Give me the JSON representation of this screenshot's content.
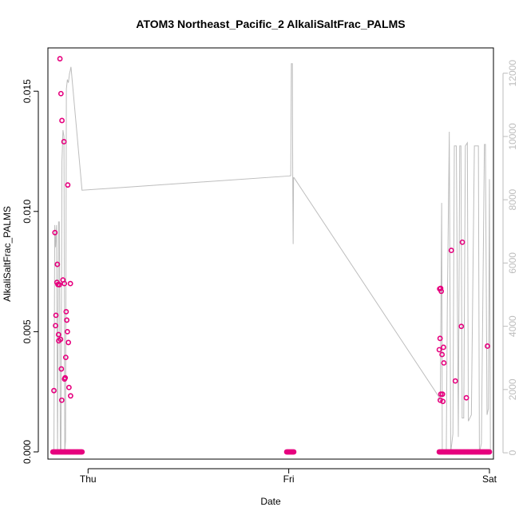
{
  "chart_data": {
    "type": "scatter",
    "title": "ATOM3 Northeast_Pacific_2 AlkaliSaltFrac_PALMS",
    "xlabel": "Date",
    "ylabel": "AlkaliSaltFrac_PALMS",
    "x_unit": "days since Thu 00:00",
    "xlim": [
      -0.2,
      2.02
    ],
    "ylim": [
      -0.0003,
      0.0168
    ],
    "y2lim": [
      -200,
      12800
    ],
    "x_ticks": [
      {
        "value": 0,
        "label": "Thu"
      },
      {
        "value": 1,
        "label": "Fri"
      },
      {
        "value": 2,
        "label": "Sat"
      }
    ],
    "y_ticks": [
      {
        "value": 0.0,
        "label": "0.000"
      },
      {
        "value": 0.005,
        "label": "0.005"
      },
      {
        "value": 0.01,
        "label": "0.010"
      },
      {
        "value": 0.015,
        "label": "0.015"
      }
    ],
    "y2_ticks": [
      {
        "value": 0,
        "label": "0"
      },
      {
        "value": 2000,
        "label": "2000"
      },
      {
        "value": 4000,
        "label": "4000"
      },
      {
        "value": 6000,
        "label": "6000"
      },
      {
        "value": 8000,
        "label": "8000"
      },
      {
        "value": 10000,
        "label": "10000"
      },
      {
        "value": 12000,
        "label": "12000"
      }
    ],
    "grid": false,
    "series": [
      {
        "type": "scatter",
        "axis": "left",
        "color": "#e6007e",
        "points": [
          [
            -0.17,
            0.00255
          ],
          [
            -0.165,
            0.00912
          ],
          [
            -0.162,
            0.00525
          ],
          [
            -0.16,
            0.00568
          ],
          [
            -0.155,
            0.00705
          ],
          [
            -0.153,
            0.0078
          ],
          [
            -0.15,
            0.00696
          ],
          [
            -0.147,
            0.00488
          ],
          [
            -0.146,
            0.00462
          ],
          [
            -0.143,
            0.00695
          ],
          [
            -0.14,
            0.01635
          ],
          [
            -0.137,
            0.00468
          ],
          [
            -0.135,
            0.0149
          ],
          [
            -0.133,
            0.00345
          ],
          [
            -0.131,
            0.00215
          ],
          [
            -0.13,
            0.01378
          ],
          [
            -0.125,
            0.00715
          ],
          [
            -0.12,
            0.0129
          ],
          [
            -0.118,
            0.007
          ],
          [
            -0.117,
            0.00303
          ],
          [
            -0.114,
            0.00308
          ],
          [
            -0.111,
            0.00393
          ],
          [
            -0.109,
            0.00583
          ],
          [
            -0.106,
            0.00548
          ],
          [
            -0.103,
            0.005
          ],
          [
            -0.101,
            0.0111
          ],
          [
            -0.098,
            0.00455
          ],
          [
            -0.095,
            0.00268
          ],
          [
            -0.088,
            0.007
          ],
          [
            -0.087,
            0.00233
          ],
          [
            1.75,
            0.00425
          ],
          [
            1.752,
            0.00678
          ],
          [
            1.754,
            0.00472
          ],
          [
            1.755,
            0.00215
          ],
          [
            1.757,
            0.0068
          ],
          [
            1.758,
            0.0024
          ],
          [
            1.76,
            0.00668
          ],
          [
            1.764,
            0.00405
          ],
          [
            1.766,
            0.0024
          ],
          [
            1.768,
            0.0021
          ],
          [
            1.771,
            0.00435
          ],
          [
            1.773,
            0.0037
          ],
          [
            1.81,
            0.00838
          ],
          [
            1.83,
            0.00295
          ],
          [
            1.86,
            0.00522
          ],
          [
            1.865,
            0.00872
          ],
          [
            1.885,
            0.00225
          ],
          [
            1.99,
            0.0044
          ]
        ],
        "zero_points": {
          "value": 0.0,
          "x_values": [
            -0.175,
            -0.17,
            -0.165,
            -0.16,
            -0.155,
            -0.15,
            -0.145,
            -0.14,
            -0.135,
            -0.13,
            -0.125,
            -0.12,
            -0.115,
            -0.11,
            -0.105,
            -0.1,
            -0.095,
            -0.09,
            -0.085,
            -0.08,
            -0.075,
            -0.07,
            -0.065,
            -0.06,
            -0.055,
            -0.05,
            -0.045,
            -0.04,
            -0.035,
            -0.03,
            0.99,
            0.995,
            1.0,
            1.005,
            1.01,
            1.015,
            1.02,
            1.025,
            1.75,
            1.755,
            1.76,
            1.765,
            1.77,
            1.775,
            1.78,
            1.785,
            1.79,
            1.795,
            1.8,
            1.805,
            1.81,
            1.815,
            1.82,
            1.825,
            1.83,
            1.835,
            1.84,
            1.845,
            1.85,
            1.855,
            1.86,
            1.865,
            1.87,
            1.875,
            1.88,
            1.885,
            1.89,
            1.895,
            1.9,
            1.905,
            1.91,
            1.915,
            1.92,
            1.925,
            1.93,
            1.935,
            1.94,
            1.945,
            1.95,
            1.955,
            1.96,
            1.965,
            1.97,
            1.975,
            1.98,
            1.985,
            1.99,
            1.995,
            2.0
          ]
        }
      },
      {
        "type": "line",
        "axis": "right",
        "color": "#bdbdbd",
        "points": [
          [
            -0.17,
            0
          ],
          [
            -0.166,
            7200
          ],
          [
            -0.162,
            6500
          ],
          [
            -0.157,
            7200
          ],
          [
            -0.152,
            0
          ],
          [
            -0.147,
            7300
          ],
          [
            -0.143,
            7300
          ],
          [
            -0.138,
            0
          ],
          [
            -0.135,
            0
          ],
          [
            -0.13,
            9200
          ],
          [
            -0.125,
            10200
          ],
          [
            -0.12,
            10000
          ],
          [
            -0.116,
            0
          ],
          [
            -0.112,
            400
          ],
          [
            -0.108,
            11500
          ],
          [
            -0.103,
            11800
          ],
          [
            -0.098,
            11700
          ],
          [
            -0.092,
            12000
          ],
          [
            -0.088,
            12100
          ],
          [
            -0.087,
            12150
          ],
          [
            -0.085,
            12200
          ],
          [
            -0.03,
            8300
          ],
          [
            1.0,
            8750
          ],
          [
            1.01,
            8760
          ],
          [
            1.013,
            12300
          ],
          [
            1.018,
            12300
          ],
          [
            1.02,
            8600
          ],
          [
            1.022,
            6600
          ],
          [
            1.024,
            8700
          ],
          [
            1.026,
            8700
          ],
          [
            1.75,
            1750
          ],
          [
            1.755,
            1650
          ],
          [
            1.762,
            7900
          ],
          [
            1.765,
            0
          ],
          [
            1.785,
            0
          ],
          [
            1.79,
            4500
          ],
          [
            1.8,
            10150
          ],
          [
            1.807,
            0
          ],
          [
            1.818,
            600
          ],
          [
            1.825,
            9700
          ],
          [
            1.835,
            9700
          ],
          [
            1.845,
            500
          ],
          [
            1.852,
            9700
          ],
          [
            1.858,
            9700
          ],
          [
            1.864,
            1100
          ],
          [
            1.872,
            1100
          ],
          [
            1.88,
            9700
          ],
          [
            1.89,
            9800
          ],
          [
            1.895,
            1000
          ],
          [
            1.91,
            1200
          ],
          [
            1.925,
            9700
          ],
          [
            1.945,
            9700
          ],
          [
            1.95,
            0
          ],
          [
            1.96,
            300
          ],
          [
            1.975,
            9750
          ],
          [
            1.98,
            9750
          ],
          [
            1.988,
            1200
          ],
          [
            1.995,
            1400
          ],
          [
            2.0,
            8650
          ],
          [
            2.005,
            0
          ]
        ]
      }
    ]
  }
}
